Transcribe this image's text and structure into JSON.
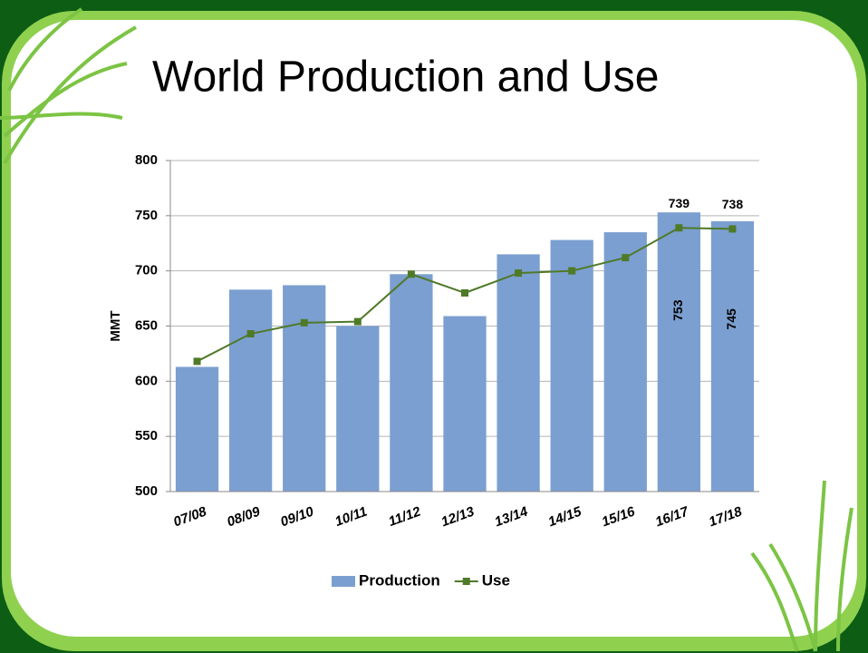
{
  "title": "World Production and Use",
  "chart_data": {
    "type": "bar-line",
    "y_label": "MMT",
    "categories": [
      "07/08",
      "08/09",
      "09/10",
      "10/11",
      "11/12",
      "12/13",
      "13/14",
      "14/15",
      "15/16",
      "16/17",
      "17/18"
    ],
    "series": [
      {
        "name": "Production",
        "type": "bar",
        "color": "#7b9fd0",
        "values": [
          613,
          683,
          687,
          650,
          697,
          659,
          715,
          728,
          735,
          753,
          745
        ],
        "value_labels": [
          null,
          null,
          null,
          null,
          null,
          null,
          null,
          null,
          null,
          "753",
          "745"
        ]
      },
      {
        "name": "Use",
        "type": "line",
        "color": "#4f7a28",
        "values": [
          618,
          643,
          653,
          654,
          697,
          680,
          698,
          700,
          712,
          739,
          738
        ],
        "value_labels": [
          null,
          null,
          null,
          null,
          null,
          null,
          null,
          null,
          null,
          "739",
          "738"
        ]
      }
    ],
    "ylim": [
      500,
      800
    ],
    "yticks": [
      500,
      550,
      600,
      650,
      700,
      750,
      800
    ],
    "grid": true,
    "legend": "bottom"
  }
}
